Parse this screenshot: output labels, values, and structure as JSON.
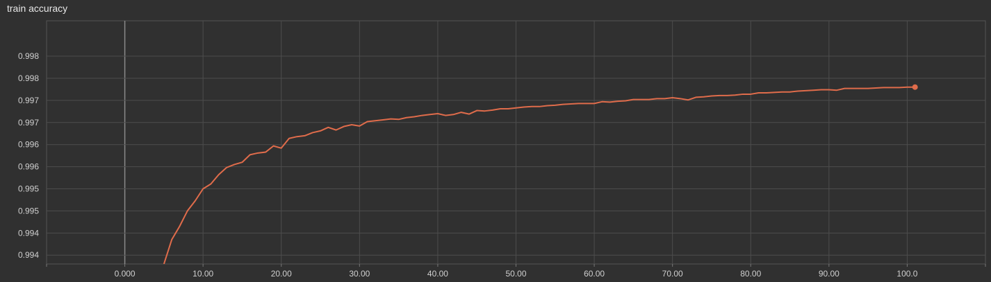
{
  "panel": {
    "title": "train accuracy"
  },
  "chart_data": {
    "type": "line",
    "title": "train accuracy",
    "xlabel": "",
    "ylabel": "",
    "xlim": [
      -10,
      110
    ],
    "ylim": [
      0.9933,
      0.9988
    ],
    "x_ticks": [
      {
        "value": 0,
        "label": "0.000"
      },
      {
        "value": 10,
        "label": "10.00"
      },
      {
        "value": 20,
        "label": "20.00"
      },
      {
        "value": 30,
        "label": "30.00"
      },
      {
        "value": 40,
        "label": "40.00"
      },
      {
        "value": 50,
        "label": "50.00"
      },
      {
        "value": 60,
        "label": "60.00"
      },
      {
        "value": 70,
        "label": "70.00"
      },
      {
        "value": 80,
        "label": "80.00"
      },
      {
        "value": 90,
        "label": "90.00"
      },
      {
        "value": 100,
        "label": "100.0"
      }
    ],
    "y_ticks": [
      {
        "value": 0.9935,
        "label": "0.994"
      },
      {
        "value": 0.994,
        "label": "0.994"
      },
      {
        "value": 0.9945,
        "label": "0.995"
      },
      {
        "value": 0.995,
        "label": "0.995"
      },
      {
        "value": 0.9955,
        "label": "0.996"
      },
      {
        "value": 0.996,
        "label": "0.996"
      },
      {
        "value": 0.9965,
        "label": "0.997"
      },
      {
        "value": 0.997,
        "label": "0.997"
      },
      {
        "value": 0.9975,
        "label": "0.998"
      },
      {
        "value": 0.998,
        "label": "0.998"
      }
    ],
    "grid": true,
    "series": [
      {
        "color": "#e06c4b",
        "points": [
          [
            5,
            0.9933
          ],
          [
            6,
            0.99385
          ],
          [
            7,
            0.99415
          ],
          [
            8,
            0.9945
          ],
          [
            9,
            0.99473
          ],
          [
            10,
            0.995
          ],
          [
            11,
            0.99511
          ],
          [
            12,
            0.99532
          ],
          [
            13,
            0.99548
          ],
          [
            14,
            0.99555
          ],
          [
            15,
            0.9956
          ],
          [
            16,
            0.99577
          ],
          [
            17,
            0.99581
          ],
          [
            18,
            0.99583
          ],
          [
            19,
            0.99597
          ],
          [
            20,
            0.99592
          ],
          [
            21,
            0.99614
          ],
          [
            22,
            0.99618
          ],
          [
            23,
            0.9962
          ],
          [
            24,
            0.99627
          ],
          [
            25,
            0.99631
          ],
          [
            26,
            0.99639
          ],
          [
            27,
            0.99633
          ],
          [
            28,
            0.99641
          ],
          [
            29,
            0.99645
          ],
          [
            30,
            0.99642
          ],
          [
            31,
            0.99652
          ],
          [
            32,
            0.99654
          ],
          [
            33,
            0.99656
          ],
          [
            34,
            0.99658
          ],
          [
            35,
            0.99657
          ],
          [
            36,
            0.99661
          ],
          [
            37,
            0.99663
          ],
          [
            38,
            0.99666
          ],
          [
            39,
            0.99668
          ],
          [
            40,
            0.9967
          ],
          [
            41,
            0.99666
          ],
          [
            42,
            0.99668
          ],
          [
            43,
            0.99673
          ],
          [
            44,
            0.99669
          ],
          [
            45,
            0.99677
          ],
          [
            46,
            0.99676
          ],
          [
            47,
            0.99678
          ],
          [
            48,
            0.99681
          ],
          [
            49,
            0.99681
          ],
          [
            50,
            0.99683
          ],
          [
            51,
            0.99685
          ],
          [
            52,
            0.99686
          ],
          [
            53,
            0.99686
          ],
          [
            54,
            0.99688
          ],
          [
            55,
            0.99689
          ],
          [
            56,
            0.99691
          ],
          [
            57,
            0.99692
          ],
          [
            58,
            0.99693
          ],
          [
            59,
            0.99693
          ],
          [
            60,
            0.99693
          ],
          [
            61,
            0.99697
          ],
          [
            62,
            0.99696
          ],
          [
            63,
            0.99698
          ],
          [
            64,
            0.99699
          ],
          [
            65,
            0.99702
          ],
          [
            66,
            0.99702
          ],
          [
            67,
            0.99702
          ],
          [
            68,
            0.99704
          ],
          [
            69,
            0.99704
          ],
          [
            70,
            0.99706
          ],
          [
            71,
            0.99704
          ],
          [
            72,
            0.99701
          ],
          [
            73,
            0.99707
          ],
          [
            74,
            0.99708
          ],
          [
            75,
            0.9971
          ],
          [
            76,
            0.99711
          ],
          [
            77,
            0.99711
          ],
          [
            78,
            0.99712
          ],
          [
            79,
            0.99714
          ],
          [
            80,
            0.99714
          ],
          [
            81,
            0.99717
          ],
          [
            82,
            0.99717
          ],
          [
            83,
            0.99718
          ],
          [
            84,
            0.99719
          ],
          [
            85,
            0.99719
          ],
          [
            86,
            0.99721
          ],
          [
            87,
            0.99722
          ],
          [
            88,
            0.99723
          ],
          [
            89,
            0.99724
          ],
          [
            90,
            0.99724
          ],
          [
            91,
            0.99723
          ],
          [
            92,
            0.99727
          ],
          [
            93,
            0.99727
          ],
          [
            94,
            0.99727
          ],
          [
            95,
            0.99727
          ],
          [
            96,
            0.99728
          ],
          [
            97,
            0.99729
          ],
          [
            98,
            0.99729
          ],
          [
            99,
            0.99729
          ],
          [
            100,
            0.9973
          ],
          [
            101,
            0.9973
          ]
        ]
      }
    ]
  }
}
